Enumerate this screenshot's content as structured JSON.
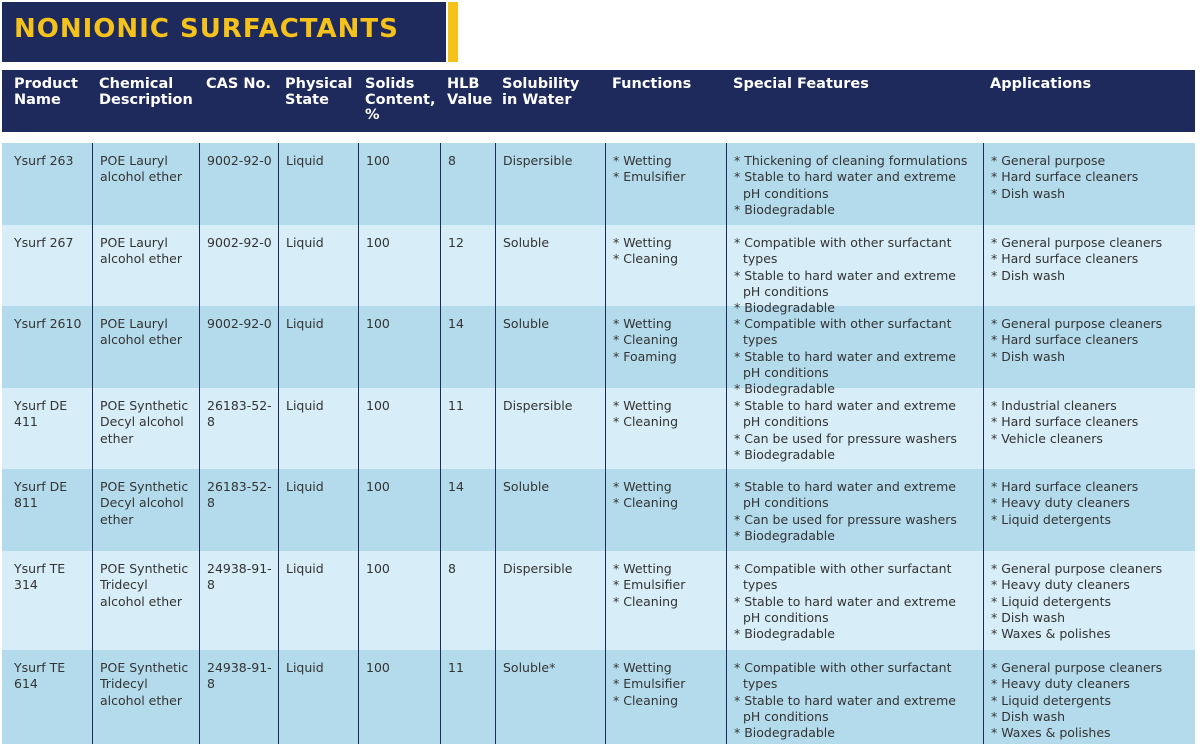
{
  "title": "NONIONIC SURFACTANTS",
  "table": {
    "columns": [
      "Product Name",
      "Chemical Description",
      "CAS No.",
      "Physical State",
      "Solids Content, %",
      "HLB Value",
      "Solubility in Water",
      "Functions",
      "Special Features",
      "Applications"
    ],
    "rows": [
      [
        "Ysurf 263",
        "POE Lauryl alcohol ether",
        "9002-92-0",
        "Liquid",
        "100",
        "8",
        "Dispersible",
        [
          "* Wetting",
          "* Emulsifier"
        ],
        [
          "* Thickening of cleaning formulations",
          "* Stable to hard water and extreme pH conditions",
          "* Biodegradable"
        ],
        [
          "* General purpose",
          "* Hard surface cleaners",
          "* Dish wash"
        ]
      ],
      [
        "Ysurf 267",
        "POE Lauryl alcohol ether",
        "9002-92-0",
        "Liquid",
        "100",
        "12",
        "Soluble",
        [
          "* Wetting",
          "* Cleaning"
        ],
        [
          "* Compatible with other surfactant types",
          "* Stable to hard water and extreme pH conditions",
          "* Biodegradable"
        ],
        [
          "* General purpose cleaners",
          "* Hard surface cleaners",
          "* Dish wash"
        ]
      ],
      [
        "Ysurf 2610",
        "POE Lauryl alcohol ether",
        "9002-92-0",
        "Liquid",
        "100",
        "14",
        "Soluble",
        [
          "* Wetting",
          "* Cleaning",
          "* Foaming"
        ],
        [
          "* Compatible with other surfactant types",
          "* Stable to hard water and extreme pH conditions",
          "* Biodegradable"
        ],
        [
          "* General purpose cleaners",
          "* Hard surface cleaners",
          "* Dish wash"
        ]
      ],
      [
        "Ysurf DE 411",
        "POE Synthetic Decyl alcohol ether",
        "26183-52-8",
        "Liquid",
        "100",
        "11",
        "Dispersible",
        [
          "* Wetting",
          "* Cleaning"
        ],
        [
          "* Stable to hard water and extreme pH conditions",
          "* Can be used for pressure washers",
          "* Biodegradable"
        ],
        [
          "* Industrial cleaners",
          "* Hard surface cleaners",
          "* Vehicle cleaners"
        ]
      ],
      [
        "Ysurf DE 811",
        "POE Synthetic Decyl alcohol ether",
        "26183-52-8",
        "Liquid",
        "100",
        "14",
        "Soluble",
        [
          "* Wetting",
          "* Cleaning"
        ],
        [
          "* Stable to hard water and extreme pH conditions",
          "* Can be used for pressure washers",
          "* Biodegradable"
        ],
        [
          "* Hard surface cleaners",
          "* Heavy duty cleaners",
          "* Liquid detergents"
        ]
      ],
      [
        "Ysurf TE 314",
        "POE Synthetic Tridecyl alcohol ether",
        "24938-91-8",
        "Liquid",
        "100",
        "8",
        "Dispersible",
        [
          "* Wetting",
          "* Emulsifier",
          "* Cleaning"
        ],
        [
          "* Compatible with other surfactant types",
          "* Stable to hard water and extreme pH conditions",
          "* Biodegradable"
        ],
        [
          "* General purpose cleaners",
          "* Heavy duty cleaners",
          "* Liquid detergents",
          "* Dish wash",
          "* Waxes & polishes"
        ]
      ],
      [
        "Ysurf TE 614",
        "POE Synthetic Tridecyl alcohol ether",
        "24938-91-8",
        "Liquid",
        "100",
        "11",
        "Soluble*",
        [
          "* Wetting",
          "* Emulsifier",
          "* Cleaning"
        ],
        [
          "* Compatible with other surfactant types",
          "* Stable to hard water and extreme pH conditions",
          "* Biodegradable"
        ],
        [
          "* General purpose cleaners",
          "* Heavy duty cleaners",
          "* Liquid detergents",
          "* Dish wash",
          "* Waxes & polishes"
        ]
      ]
    ]
  }
}
